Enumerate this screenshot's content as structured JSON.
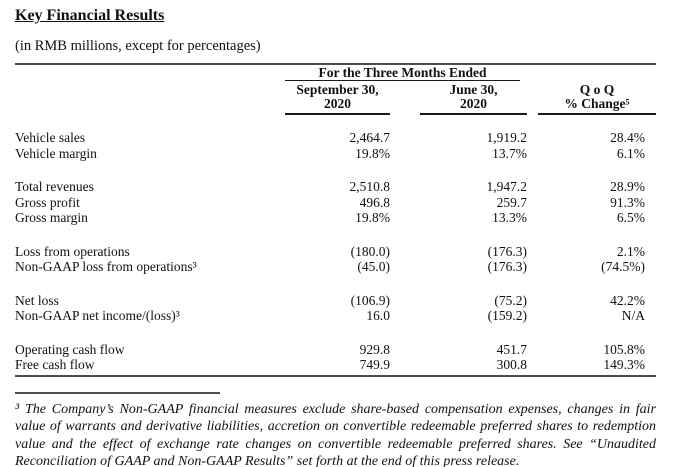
{
  "title": "Key Financial Results",
  "subtitle": "(in RMB millions, except for percentages)",
  "table": {
    "span_header": "For the Three Months Ended",
    "columns": [
      {
        "line1": "September 30,",
        "line2": "2020"
      },
      {
        "line1": "June 30,",
        "line2": "2020"
      },
      {
        "line1": "Q o Q",
        "line2": "% Change⁵"
      }
    ],
    "groups": [
      {
        "rows": [
          {
            "label": "Vehicle sales",
            "sep30_2020": "2,464.7",
            "jun30_2020": "1,919.2",
            "qoq_change": "28.4%"
          },
          {
            "label": "Vehicle margin",
            "sep30_2020": "19.8%",
            "jun30_2020": "13.7%",
            "qoq_change": "6.1%"
          }
        ]
      },
      {
        "rows": [
          {
            "label": "Total revenues",
            "sep30_2020": "2,510.8",
            "jun30_2020": "1,947.2",
            "qoq_change": "28.9%"
          },
          {
            "label": "Gross profit",
            "sep30_2020": "496.8",
            "jun30_2020": "259.7",
            "qoq_change": "91.3%"
          },
          {
            "label": "Gross margin",
            "sep30_2020": "19.8%",
            "jun30_2020": "13.3%",
            "qoq_change": "6.5%"
          }
        ]
      },
      {
        "rows": [
          {
            "label": "Loss from operations",
            "sep30_2020": "(180.0)",
            "jun30_2020": "(176.3)",
            "qoq_change": "2.1%"
          },
          {
            "label": "Non-GAAP loss from operations³",
            "sep30_2020": "(45.0)",
            "jun30_2020": "(176.3)",
            "qoq_change": "(74.5%)"
          }
        ]
      },
      {
        "rows": [
          {
            "label": "Net loss",
            "sep30_2020": "(106.9)",
            "jun30_2020": "(75.2)",
            "qoq_change": "42.2%"
          },
          {
            "label": "Non-GAAP net income/(loss)³",
            "sep30_2020": "16.0",
            "jun30_2020": "(159.2)",
            "qoq_change": "N/A"
          }
        ]
      },
      {
        "rows": [
          {
            "label": "Operating cash flow",
            "sep30_2020": "929.8",
            "jun30_2020": "451.7",
            "qoq_change": "105.8%"
          },
          {
            "label": "Free cash flow",
            "sep30_2020": "749.9",
            "jun30_2020": "300.8",
            "qoq_change": "149.3%"
          }
        ]
      }
    ]
  },
  "footnote": "³ The Company’s Non-GAAP financial measures exclude share-based compensation expenses, changes in fair value of warrants and derivative liabilities, accretion on convertible redeemable preferred shares to redemption value and the effect of exchange rate changes on convertible redeemable preferred shares. See “Unaudited Reconciliation of GAAP and Non-GAAP Results” set forth at the end of this press release."
}
